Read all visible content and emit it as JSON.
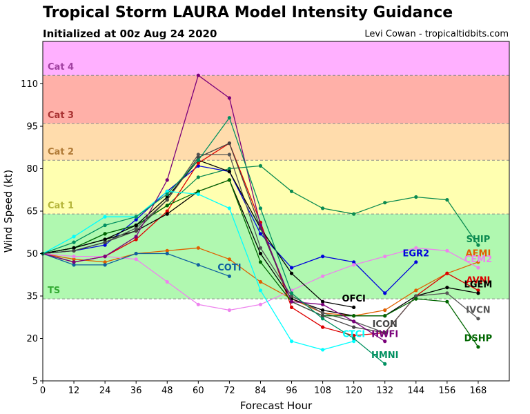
{
  "header": {
    "title": "Tropical Storm LAURA Model Intensity Guidance",
    "subtitle": "Initialized at 00z Aug 24 2020",
    "credit": "Levi Cowan - tropicaltidbits.com"
  },
  "chart_data": {
    "type": "line",
    "xlabel": "Forecast Hour",
    "ylabel": "Wind Speed (kt)",
    "xlim": [
      0,
      180
    ],
    "ylim": [
      5,
      125
    ],
    "xticks": [
      0,
      12,
      24,
      36,
      48,
      60,
      72,
      84,
      96,
      108,
      120,
      132,
      144,
      156,
      168
    ],
    "yticks": [
      5,
      20,
      35,
      50,
      65,
      80,
      95,
      110
    ],
    "bands": [
      {
        "label": "TS",
        "from": 34,
        "to": 64,
        "fill": "#b0f8b0",
        "text_color": "#33aa33"
      },
      {
        "label": "Cat 1",
        "from": 64,
        "to": 83,
        "fill": "#ffffb0",
        "text_color": "#b5b53a"
      },
      {
        "label": "Cat 2",
        "from": 83,
        "to": 96,
        "fill": "#ffdcac",
        "text_color": "#b07a36"
      },
      {
        "label": "Cat 3",
        "from": 96,
        "to": 113,
        "fill": "#ffb0a8",
        "text_color": "#aa3333"
      },
      {
        "label": "Cat 4",
        "from": 113,
        "to": 125,
        "fill": "#ffb0ff",
        "text_color": "#a040a0"
      }
    ],
    "series": [
      {
        "name": "SHIP",
        "color": "#0a8a50",
        "label_x": 168,
        "label_y": 54,
        "x": [
          0,
          12,
          24,
          36,
          48,
          60,
          72,
          84,
          96,
          108,
          120,
          132,
          144,
          156,
          168
        ],
        "y": [
          50,
          52,
          57,
          60,
          67,
          77,
          80,
          81,
          72,
          66,
          64,
          68,
          70,
          69,
          53
        ]
      },
      {
        "name": "EGR2",
        "color": "#0000dd",
        "label_x": 144,
        "label_y": 49,
        "x": [
          0,
          12,
          24,
          36,
          48,
          60,
          72,
          84,
          96,
          108,
          120,
          132,
          144
        ],
        "y": [
          50,
          51,
          53,
          62,
          72,
          81,
          79,
          57,
          45,
          49,
          47,
          36,
          47
        ]
      },
      {
        "name": "AEMI",
        "color": "#e06000",
        "label_x": 168,
        "label_y": 49,
        "x": [
          0,
          12,
          24,
          36,
          48,
          60,
          72,
          84,
          96,
          108,
          120,
          132,
          144,
          156,
          168
        ],
        "y": [
          50,
          48,
          47,
          50,
          51,
          52,
          48,
          40,
          34,
          29,
          28,
          30,
          37,
          43,
          47
        ]
      },
      {
        "name": "CEM2",
        "color": "#ee82ee",
        "label_x": 168,
        "label_y": 47,
        "x": [
          0,
          12,
          24,
          36,
          48,
          60,
          72,
          84,
          96,
          108,
          120,
          132,
          144,
          156,
          168
        ],
        "y": [
          50,
          49,
          49,
          48,
          40,
          32,
          30,
          32,
          37,
          42,
          46,
          49,
          52,
          51,
          45
        ]
      },
      {
        "name": "AVNI",
        "color": "#dd0000",
        "label_x": 168,
        "label_y": 39.5,
        "x": [
          0,
          12,
          24,
          36,
          48,
          60,
          72,
          84,
          96,
          108,
          120,
          132,
          144,
          156,
          168
        ],
        "y": [
          50,
          47,
          49,
          55,
          65,
          82,
          89,
          61,
          31,
          24,
          21,
          22,
          35,
          43,
          37
        ]
      },
      {
        "name": "LGEM",
        "color": "#000000",
        "label_x": 168,
        "label_y": 38,
        "x": [
          0,
          12,
          24,
          36,
          48,
          60,
          72,
          84,
          96,
          108,
          120,
          132,
          144,
          156,
          168
        ],
        "y": [
          50,
          52,
          55,
          58,
          64,
          72,
          76,
          50,
          34,
          30,
          28,
          28,
          35,
          38,
          36
        ]
      },
      {
        "name": "IVCN",
        "color": "#555555",
        "label_x": 168,
        "label_y": 29,
        "x": [
          0,
          12,
          24,
          36,
          48,
          60,
          72,
          84,
          96,
          108,
          120,
          132,
          144,
          156,
          168
        ],
        "y": [
          50,
          51,
          54,
          59,
          69,
          85,
          85,
          52,
          35,
          29,
          26,
          22,
          35,
          36,
          27
        ]
      },
      {
        "name": "DSHP",
        "color": "#006600",
        "label_x": 168,
        "label_y": 19,
        "x": [
          0,
          12,
          24,
          36,
          48,
          60,
          72,
          84,
          96,
          108,
          120,
          132,
          144,
          156,
          168
        ],
        "y": [
          50,
          52,
          57,
          60,
          67,
          72,
          76,
          47,
          33,
          28,
          28,
          28,
          34,
          33,
          17
        ]
      },
      {
        "name": "COTI",
        "color": "#1060a0",
        "label_x": 72,
        "label_y": 44,
        "x": [
          0,
          12,
          24,
          36,
          48,
          60,
          72
        ],
        "y": [
          50,
          46,
          46,
          50,
          50,
          46,
          42
        ]
      },
      {
        "name": "OFCI",
        "color": "#000000",
        "label_x": 120,
        "label_y": 33,
        "x": [
          0,
          12,
          24,
          36,
          48,
          60,
          72,
          84,
          96,
          108,
          120
        ],
        "y": [
          50,
          52,
          55,
          60,
          70,
          83,
          79,
          59,
          43,
          33,
          31
        ]
      },
      {
        "name": "ICON",
        "color": "#444444",
        "label_x": 132,
        "label_y": 24,
        "x": [
          0,
          12,
          24,
          36,
          48,
          60,
          72,
          84,
          96,
          108,
          120,
          132
        ],
        "y": [
          50,
          51,
          54,
          58,
          69,
          84,
          89,
          59,
          33,
          28,
          24,
          22
        ]
      },
      {
        "name": "CTCI",
        "color": "#00ffff",
        "label_x": 120,
        "label_y": 20.5,
        "x": [
          0,
          12,
          24,
          36,
          48,
          60,
          72,
          84,
          96,
          108,
          120
        ],
        "y": [
          50,
          56,
          63,
          63,
          72,
          71,
          66,
          37,
          19,
          16,
          19
        ]
      },
      {
        "name": "HWFI",
        "color": "#7a007a",
        "label_x": 132,
        "label_y": 20.5,
        "x": [
          0,
          12,
          24,
          36,
          48,
          60,
          72,
          84,
          96,
          108,
          120,
          132
        ],
        "y": [
          50,
          47,
          49,
          56,
          76,
          113,
          105,
          60,
          33,
          32,
          26,
          19
        ]
      },
      {
        "name": "HMNI",
        "color": "#009060",
        "label_x": 132,
        "label_y": 13,
        "x": [
          0,
          12,
          24,
          36,
          48,
          60,
          72,
          84,
          96,
          108,
          120,
          132
        ],
        "y": [
          50,
          54,
          60,
          63,
          71,
          83,
          98,
          66,
          36,
          27,
          20,
          11
        ]
      }
    ]
  }
}
